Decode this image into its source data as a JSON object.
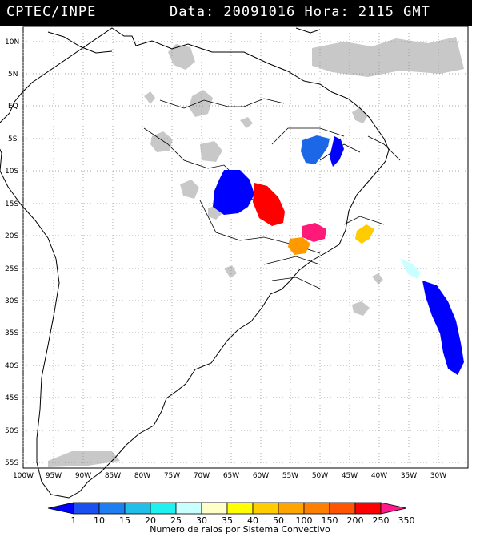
{
  "header": {
    "source": "CPTEC/INPE",
    "datetime": "Data: 20091016 Hora: 2115 GMT"
  },
  "map": {
    "lat_labels": [
      "10N",
      "5N",
      "EQ",
      "5S",
      "10S",
      "15S",
      "20S",
      "25S",
      "30S",
      "35S",
      "40S",
      "45S",
      "50S",
      "55S"
    ],
    "lon_labels": [
      "100W",
      "95W",
      "90W",
      "85W",
      "80W",
      "75W",
      "70W",
      "65W",
      "60W",
      "55W",
      "50W",
      "45W",
      "40W",
      "35W",
      "30W"
    ],
    "colors": {
      "cloud": "#c8c8c8",
      "grid": "#888888",
      "coast": "#000000"
    },
    "convective_systems": [
      {
        "name": "nordeste-brasil",
        "color": "#1c66e8"
      },
      {
        "name": "rondonia",
        "color": "#0000ff"
      },
      {
        "name": "mato-grosso",
        "color": "#ff0000"
      },
      {
        "name": "mato-grosso-sul",
        "color": "#ff1a7a"
      },
      {
        "name": "parana",
        "color": "#ff9900"
      },
      {
        "name": "minas-gerais",
        "color": "#ffcc00"
      },
      {
        "name": "atlantico-sul",
        "color": "#0000ff"
      }
    ]
  },
  "colorbar": {
    "ticks": [
      "1",
      "10",
      "15",
      "20",
      "25",
      "30",
      "35",
      "40",
      "50",
      "100",
      "150",
      "200",
      "250",
      "350"
    ],
    "colors": [
      "#0000ff",
      "#1a4ff0",
      "#1f7ff0",
      "#1fbfea",
      "#1ff0f0",
      "#c8ffff",
      "#ffffc8",
      "#ffff00",
      "#ffcc00",
      "#ffa500",
      "#ff8000",
      "#ff5500",
      "#ff0000",
      "#ff1a8c"
    ],
    "title": "Numero de raios por Sistema Convectivo"
  }
}
